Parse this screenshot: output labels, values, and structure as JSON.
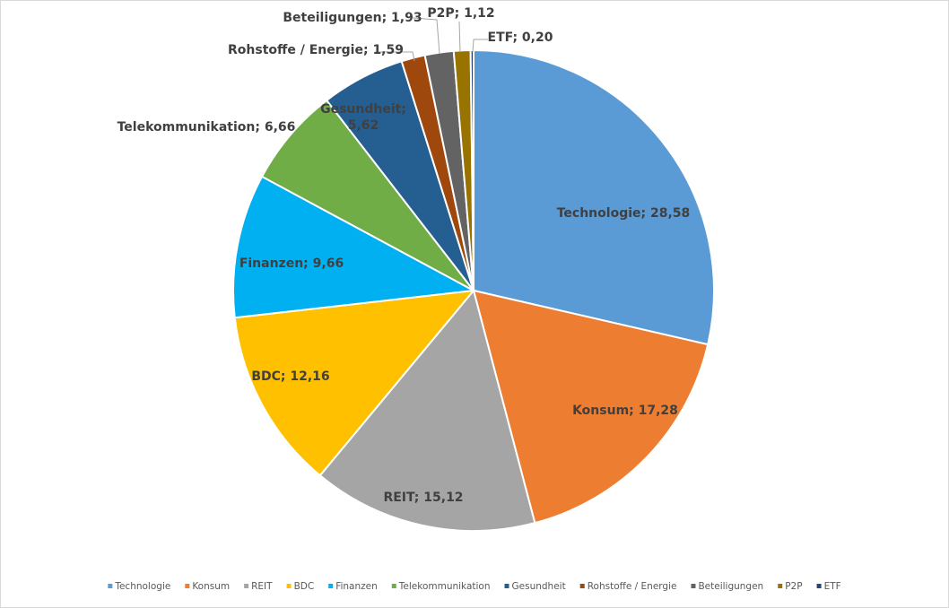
{
  "chart_data": {
    "type": "pie",
    "title": "",
    "legend_position": "bottom",
    "decimal_separator": ",",
    "label_separator": "; ",
    "slices": [
      {
        "name": "Technologie",
        "value": 28.58,
        "label": "Technologie; 28,58",
        "color": "#5b9bd5"
      },
      {
        "name": "Konsum",
        "value": 17.28,
        "label": "Konsum; 17,28",
        "color": "#ed7d31"
      },
      {
        "name": "REIT",
        "value": 15.12,
        "label": "REIT; 15,12",
        "color": "#a5a5a5"
      },
      {
        "name": "BDC",
        "value": 12.16,
        "label": "BDC; 12,16",
        "color": "#ffc000"
      },
      {
        "name": "Finanzen",
        "value": 9.66,
        "label": "Finanzen; 9,66",
        "color": "#00b0f0"
      },
      {
        "name": "Telekommunikation",
        "value": 6.66,
        "label": "Telekommunikation; 6,66",
        "color": "#70ad47"
      },
      {
        "name": "Gesundheit",
        "value": 5.62,
        "label": "Gesundheit; 5,62",
        "color": "#255e91"
      },
      {
        "name": "Rohstoffe / Energie",
        "value": 1.59,
        "label": "Rohstoffe / Energie; 1,59",
        "color": "#9e480e"
      },
      {
        "name": "Beteiligungen",
        "value": 1.93,
        "label": "Beteiligungen; 1,93",
        "color": "#636363"
      },
      {
        "name": "P2P",
        "value": 1.12,
        "label": "P2P; 1,12",
        "color": "#997300"
      },
      {
        "name": "ETF",
        "value": 0.2,
        "label": "ETF; 0,20",
        "color": "#264478"
      }
    ]
  }
}
